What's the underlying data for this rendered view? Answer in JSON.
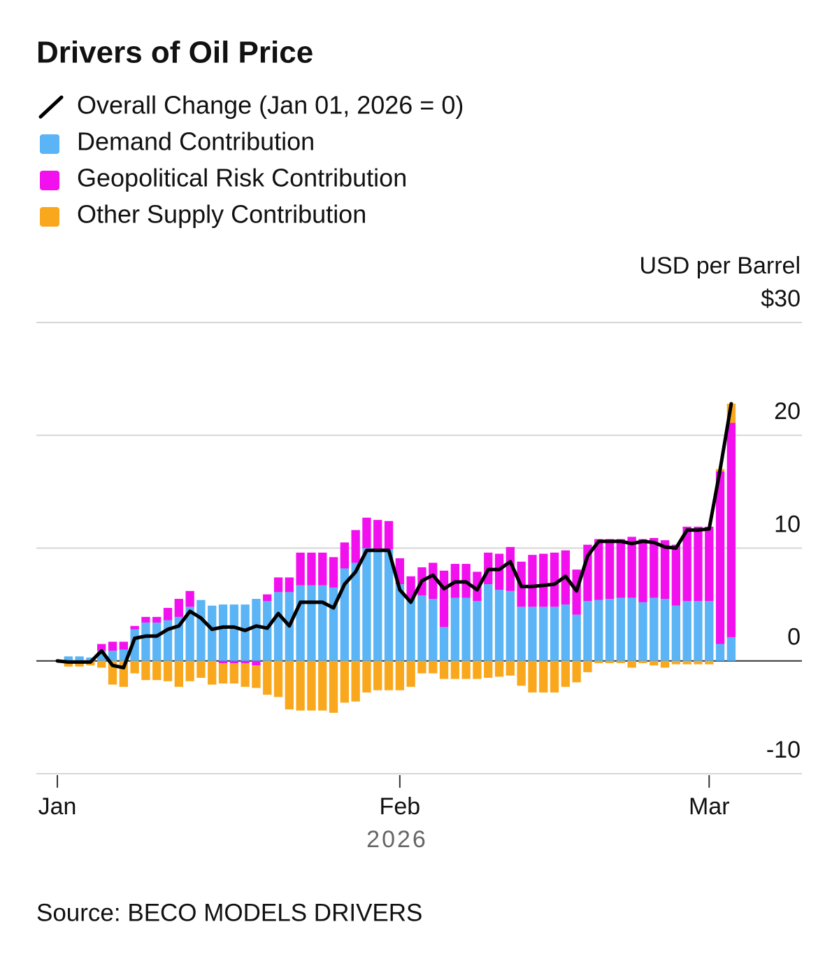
{
  "chart_data": {
    "type": "bar",
    "title": "Drivers of Oil Price",
    "y_label": "USD per Barrel",
    "source": "Source: BECO MODELS DRIVERS",
    "x_sublabel": "2026",
    "x": [
      0,
      1,
      2,
      3,
      4,
      5,
      6,
      7,
      8,
      9,
      10,
      11,
      12,
      13,
      14,
      15,
      16,
      17,
      18,
      19,
      20,
      21,
      22,
      23,
      24,
      25,
      26,
      27,
      28,
      29,
      30,
      31,
      32,
      33,
      34,
      35,
      36,
      37,
      38,
      39,
      40,
      41,
      42,
      43,
      44,
      45,
      46,
      47,
      48,
      49,
      50,
      51,
      52,
      53,
      54,
      55,
      56,
      57,
      58,
      59,
      60,
      61
    ],
    "xlim": [
      -1.9,
      67.4
    ],
    "xticks": [
      {
        "value": 0,
        "label": "Jan"
      },
      {
        "value": 31,
        "label": "Feb"
      },
      {
        "value": 59,
        "label": "Mar"
      }
    ],
    "ylim": [
      -10,
      30
    ],
    "yticks": [
      {
        "value": 30,
        "label": "$30"
      },
      20,
      10,
      0,
      -10
    ],
    "grid": true,
    "series": [
      {
        "name": "Overall Change (Jan 01, 2026 = 0)",
        "type": "line",
        "color": "#000000",
        "values": [
          0,
          -0.1,
          -0.1,
          -0.1,
          0.9,
          -0.4,
          -0.6,
          2.0,
          2.2,
          2.2,
          2.8,
          3.1,
          4.4,
          3.8,
          2.8,
          3.0,
          3.0,
          2.7,
          3.1,
          2.9,
          4.2,
          3.1,
          5.2,
          5.2,
          5.2,
          4.7,
          6.8,
          7.9,
          9.8,
          9.8,
          9.8,
          6.3,
          5.2,
          7.1,
          7.6,
          6.4,
          7.0,
          7.0,
          6.3,
          8.1,
          8.1,
          8.8,
          6.6,
          6.6,
          6.7,
          6.8,
          7.5,
          6.2,
          9.3,
          10.6,
          10.6,
          10.6,
          10.4,
          10.6,
          10.5,
          10.1,
          10.0,
          11.6,
          11.6,
          11.7,
          17.0,
          22.8
        ]
      },
      {
        "name": "Demand Contribution",
        "type": "bar",
        "color": "#5ab4f5",
        "values": [
          null,
          0.4,
          0.4,
          0.3,
          0.9,
          0.9,
          1.0,
          2.8,
          3.4,
          3.4,
          3.6,
          3.9,
          4.8,
          5.4,
          4.9,
          5.0,
          5.0,
          5.0,
          5.5,
          5.3,
          6.1,
          6.1,
          6.7,
          6.7,
          6.7,
          6.5,
          8.2,
          8.7,
          10.0,
          9.9,
          9.9,
          6.8,
          5.5,
          5.8,
          5.5,
          3.0,
          5.6,
          5.6,
          5.3,
          6.8,
          6.3,
          6.2,
          4.8,
          4.8,
          4.8,
          4.8,
          5.0,
          4.1,
          5.3,
          5.4,
          5.5,
          5.6,
          5.6,
          5.2,
          5.6,
          5.5,
          4.9,
          5.3,
          5.3,
          5.3,
          1.5,
          2.1
        ]
      },
      {
        "name": "Geopolitical Risk Contribution",
        "type": "bar",
        "color": "#f211ee",
        "values": [
          null,
          0,
          0,
          0,
          0.6,
          0.8,
          0.7,
          0.3,
          0.5,
          0.5,
          1.1,
          1.6,
          1.4,
          0,
          0,
          -0.2,
          -0.2,
          -0.2,
          -0.4,
          0.6,
          1.3,
          1.3,
          2.9,
          2.9,
          2.9,
          2.7,
          2.3,
          2.9,
          2.7,
          2.6,
          2.5,
          2.3,
          2.0,
          2.5,
          3.2,
          5.0,
          3.0,
          3.0,
          2.6,
          2.8,
          3.2,
          3.9,
          4.0,
          4.6,
          4.7,
          4.8,
          4.8,
          4.0,
          5.0,
          5.4,
          5.3,
          5.2,
          5.4,
          5.6,
          5.3,
          5.2,
          5.4,
          6.6,
          6.6,
          6.6,
          15.3,
          19.0
        ]
      },
      {
        "name": "Other Supply Contribution",
        "type": "bar",
        "color": "#f9a81e",
        "values": [
          null,
          -0.5,
          -0.5,
          -0.4,
          -0.6,
          -2.1,
          -2.3,
          -1.1,
          -1.7,
          -1.7,
          -1.8,
          -2.3,
          -1.8,
          -1.5,
          -2.1,
          -1.8,
          -1.8,
          -2.1,
          -2.0,
          -3.0,
          -3.2,
          -4.3,
          -4.4,
          -4.4,
          -4.4,
          -4.6,
          -3.7,
          -3.6,
          -2.8,
          -2.6,
          -2.6,
          -2.6,
          -2.3,
          -1.1,
          -1.1,
          -1.6,
          -1.6,
          -1.6,
          -1.6,
          -1.5,
          -1.4,
          -1.3,
          -2.2,
          -2.8,
          -2.8,
          -2.8,
          -2.3,
          -1.9,
          -1.0,
          -0.2,
          -0.2,
          -0.2,
          -0.6,
          -0.2,
          -0.4,
          -0.6,
          -0.3,
          -0.3,
          -0.3,
          -0.3,
          0.2,
          1.7
        ]
      }
    ]
  }
}
